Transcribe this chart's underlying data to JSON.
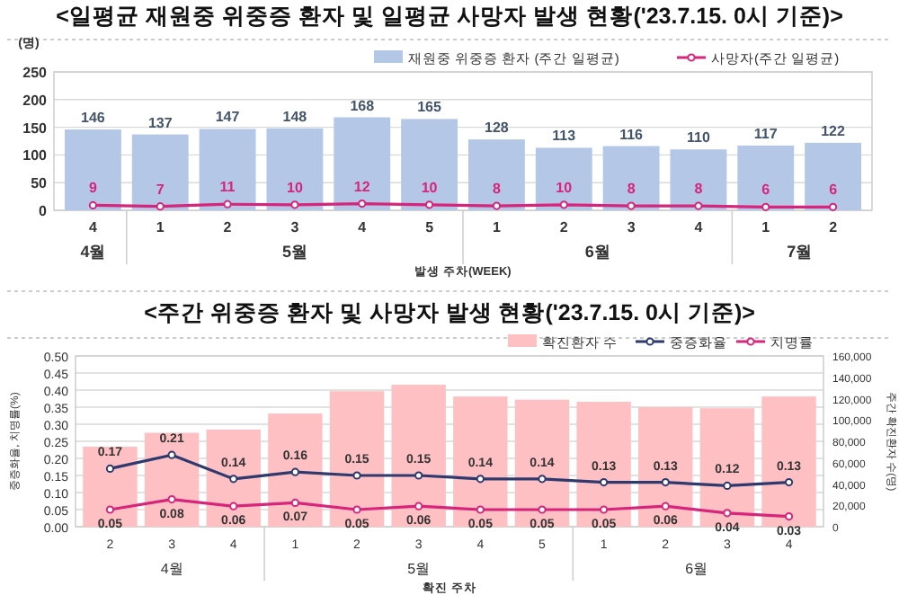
{
  "chart_data": [
    {
      "type": "bar",
      "title": "<일평균 재원중 위중증 환자 및 일평균 사망자 발생 현황('23.7.15. 0시 기준)>",
      "ylabel": "(명)",
      "xlabel": "발생 주차(WEEK)",
      "categories": [
        "4",
        "1",
        "2",
        "3",
        "4",
        "5",
        "1",
        "2",
        "3",
        "4",
        "1",
        "2"
      ],
      "annotations": [
        "4월",
        "5월",
        "6월",
        "7월"
      ],
      "series": [
        {
          "name": "재원중 위중증 환자 (주간 일평균)",
          "color": "#b4c7e7",
          "values": [
            146,
            137,
            147,
            148,
            168,
            165,
            128,
            113,
            116,
            110,
            117,
            122
          ]
        },
        {
          "name": "사망자(주간 일평균)",
          "type": "line",
          "color": "#d6257a",
          "values": [
            9,
            7,
            11,
            10,
            12,
            10,
            8,
            10,
            8,
            8,
            6,
            6
          ]
        }
      ],
      "ylim": [
        0,
        250
      ],
      "yticks": [
        0,
        50,
        100,
        150,
        200,
        250
      ],
      "grid": "y",
      "legend": "top right",
      "marker": "circle",
      "data_labels": true
    },
    {
      "type": "bar",
      "title": "<주간 위중증 환자 및 사망자 발생 현황('23.7.15. 0시 기준)>",
      "ylabel": "중증화율, 치명률(%)",
      "y2label": "주간 확진환자 수(명)",
      "xlabel": "확진 주차",
      "categories": [
        "2",
        "3",
        "4",
        "1",
        "2",
        "3",
        "4",
        "5",
        "1",
        "2",
        "3",
        "4"
      ],
      "annotations": [
        "4월",
        "5월",
        "6월"
      ],
      "series": [
        {
          "name": "확진환자 수",
          "axis": "y2",
          "color": "#ffc0c4",
          "values": [
            75000,
            88000,
            91000,
            106000,
            127000,
            133000,
            122000,
            119000,
            117000,
            112000,
            111000,
            122000
          ]
        },
        {
          "name": "중증화율",
          "type": "line",
          "color": "#2e3a6e",
          "values": [
            0.17,
            0.21,
            0.14,
            0.16,
            0.15,
            0.15,
            0.14,
            0.14,
            0.13,
            0.13,
            0.12,
            0.13
          ],
          "value_labels": [
            "0.17",
            "0.21",
            "0.14",
            "0.16",
            "0.15",
            "0.15",
            "0.14",
            "0.14",
            "0.13",
            "0.13",
            "0.12",
            "0.13"
          ]
        },
        {
          "name": "치명률",
          "type": "line",
          "color": "#d6257a",
          "values": [
            0.05,
            0.08,
            0.06,
            0.07,
            0.05,
            0.06,
            0.05,
            0.05,
            0.05,
            0.06,
            0.04,
            0.03
          ],
          "value_labels": [
            "0.05",
            "0.08",
            "0.06",
            "0.07",
            "0.05",
            "0.06",
            "0.05",
            "0.05",
            "0.05",
            "0.06",
            "0.04",
            "0.03"
          ]
        }
      ],
      "ylim": [
        0,
        0.5
      ],
      "yticks": [
        {
          "value": 0,
          "label": "0.00"
        },
        {
          "value": 0.05,
          "label": "0.05"
        },
        {
          "value": 0.1,
          "label": "0.10"
        },
        {
          "value": 0.15,
          "label": "0.15"
        },
        {
          "value": 0.2,
          "label": "0.20"
        },
        {
          "value": 0.25,
          "label": "0.25"
        },
        {
          "value": 0.3,
          "label": "0.30"
        },
        {
          "value": 0.35,
          "label": "0.35"
        },
        {
          "value": 0.4,
          "label": "0.40"
        },
        {
          "value": 0.45,
          "label": "0.45"
        },
        {
          "value": 0.5,
          "label": "0.50"
        }
      ],
      "y2lim": [
        0,
        160000
      ],
      "y2ticks": [
        0,
        {
          "value": 20000,
          "label": "20,000"
        },
        {
          "value": 40000,
          "label": "40,000"
        },
        {
          "value": 60000,
          "label": "60,000"
        },
        {
          "value": 80000,
          "label": "80,000"
        },
        {
          "value": 100000,
          "label": "100,000"
        },
        {
          "value": 120000,
          "label": "120,000"
        },
        {
          "value": 140000,
          "label": "140,000"
        },
        {
          "value": 160000,
          "label": "160,000"
        }
      ],
      "grid": "y",
      "legend": "top right",
      "marker": "circle"
    }
  ]
}
